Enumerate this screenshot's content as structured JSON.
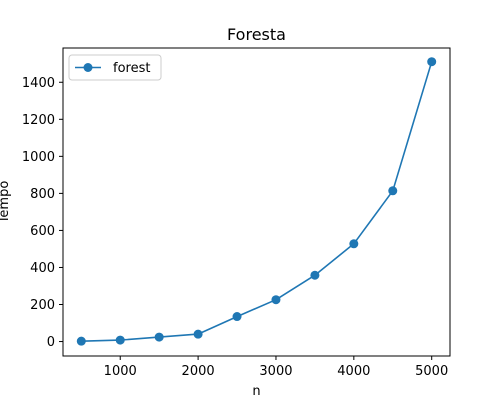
{
  "chart_data": {
    "type": "line",
    "title": "Foresta",
    "xlabel": "n",
    "ylabel": "Tempo",
    "x": [
      500,
      1000,
      1500,
      2000,
      2500,
      3000,
      3500,
      4000,
      4500,
      5000
    ],
    "xlim": [
      265,
      5235
    ],
    "ylim": [
      -78,
      1585
    ],
    "xticks": [
      1000,
      2000,
      3000,
      4000,
      5000
    ],
    "yticks": [
      0,
      200,
      400,
      600,
      800,
      1000,
      1200,
      1400
    ],
    "grid": false,
    "legend_position": "upper-left",
    "series": [
      {
        "name": "forest",
        "color": "#1f77b4",
        "marker": "circle",
        "values": [
          2,
          8,
          24,
          40,
          135,
          226,
          358,
          528,
          814,
          1511
        ]
      }
    ]
  }
}
